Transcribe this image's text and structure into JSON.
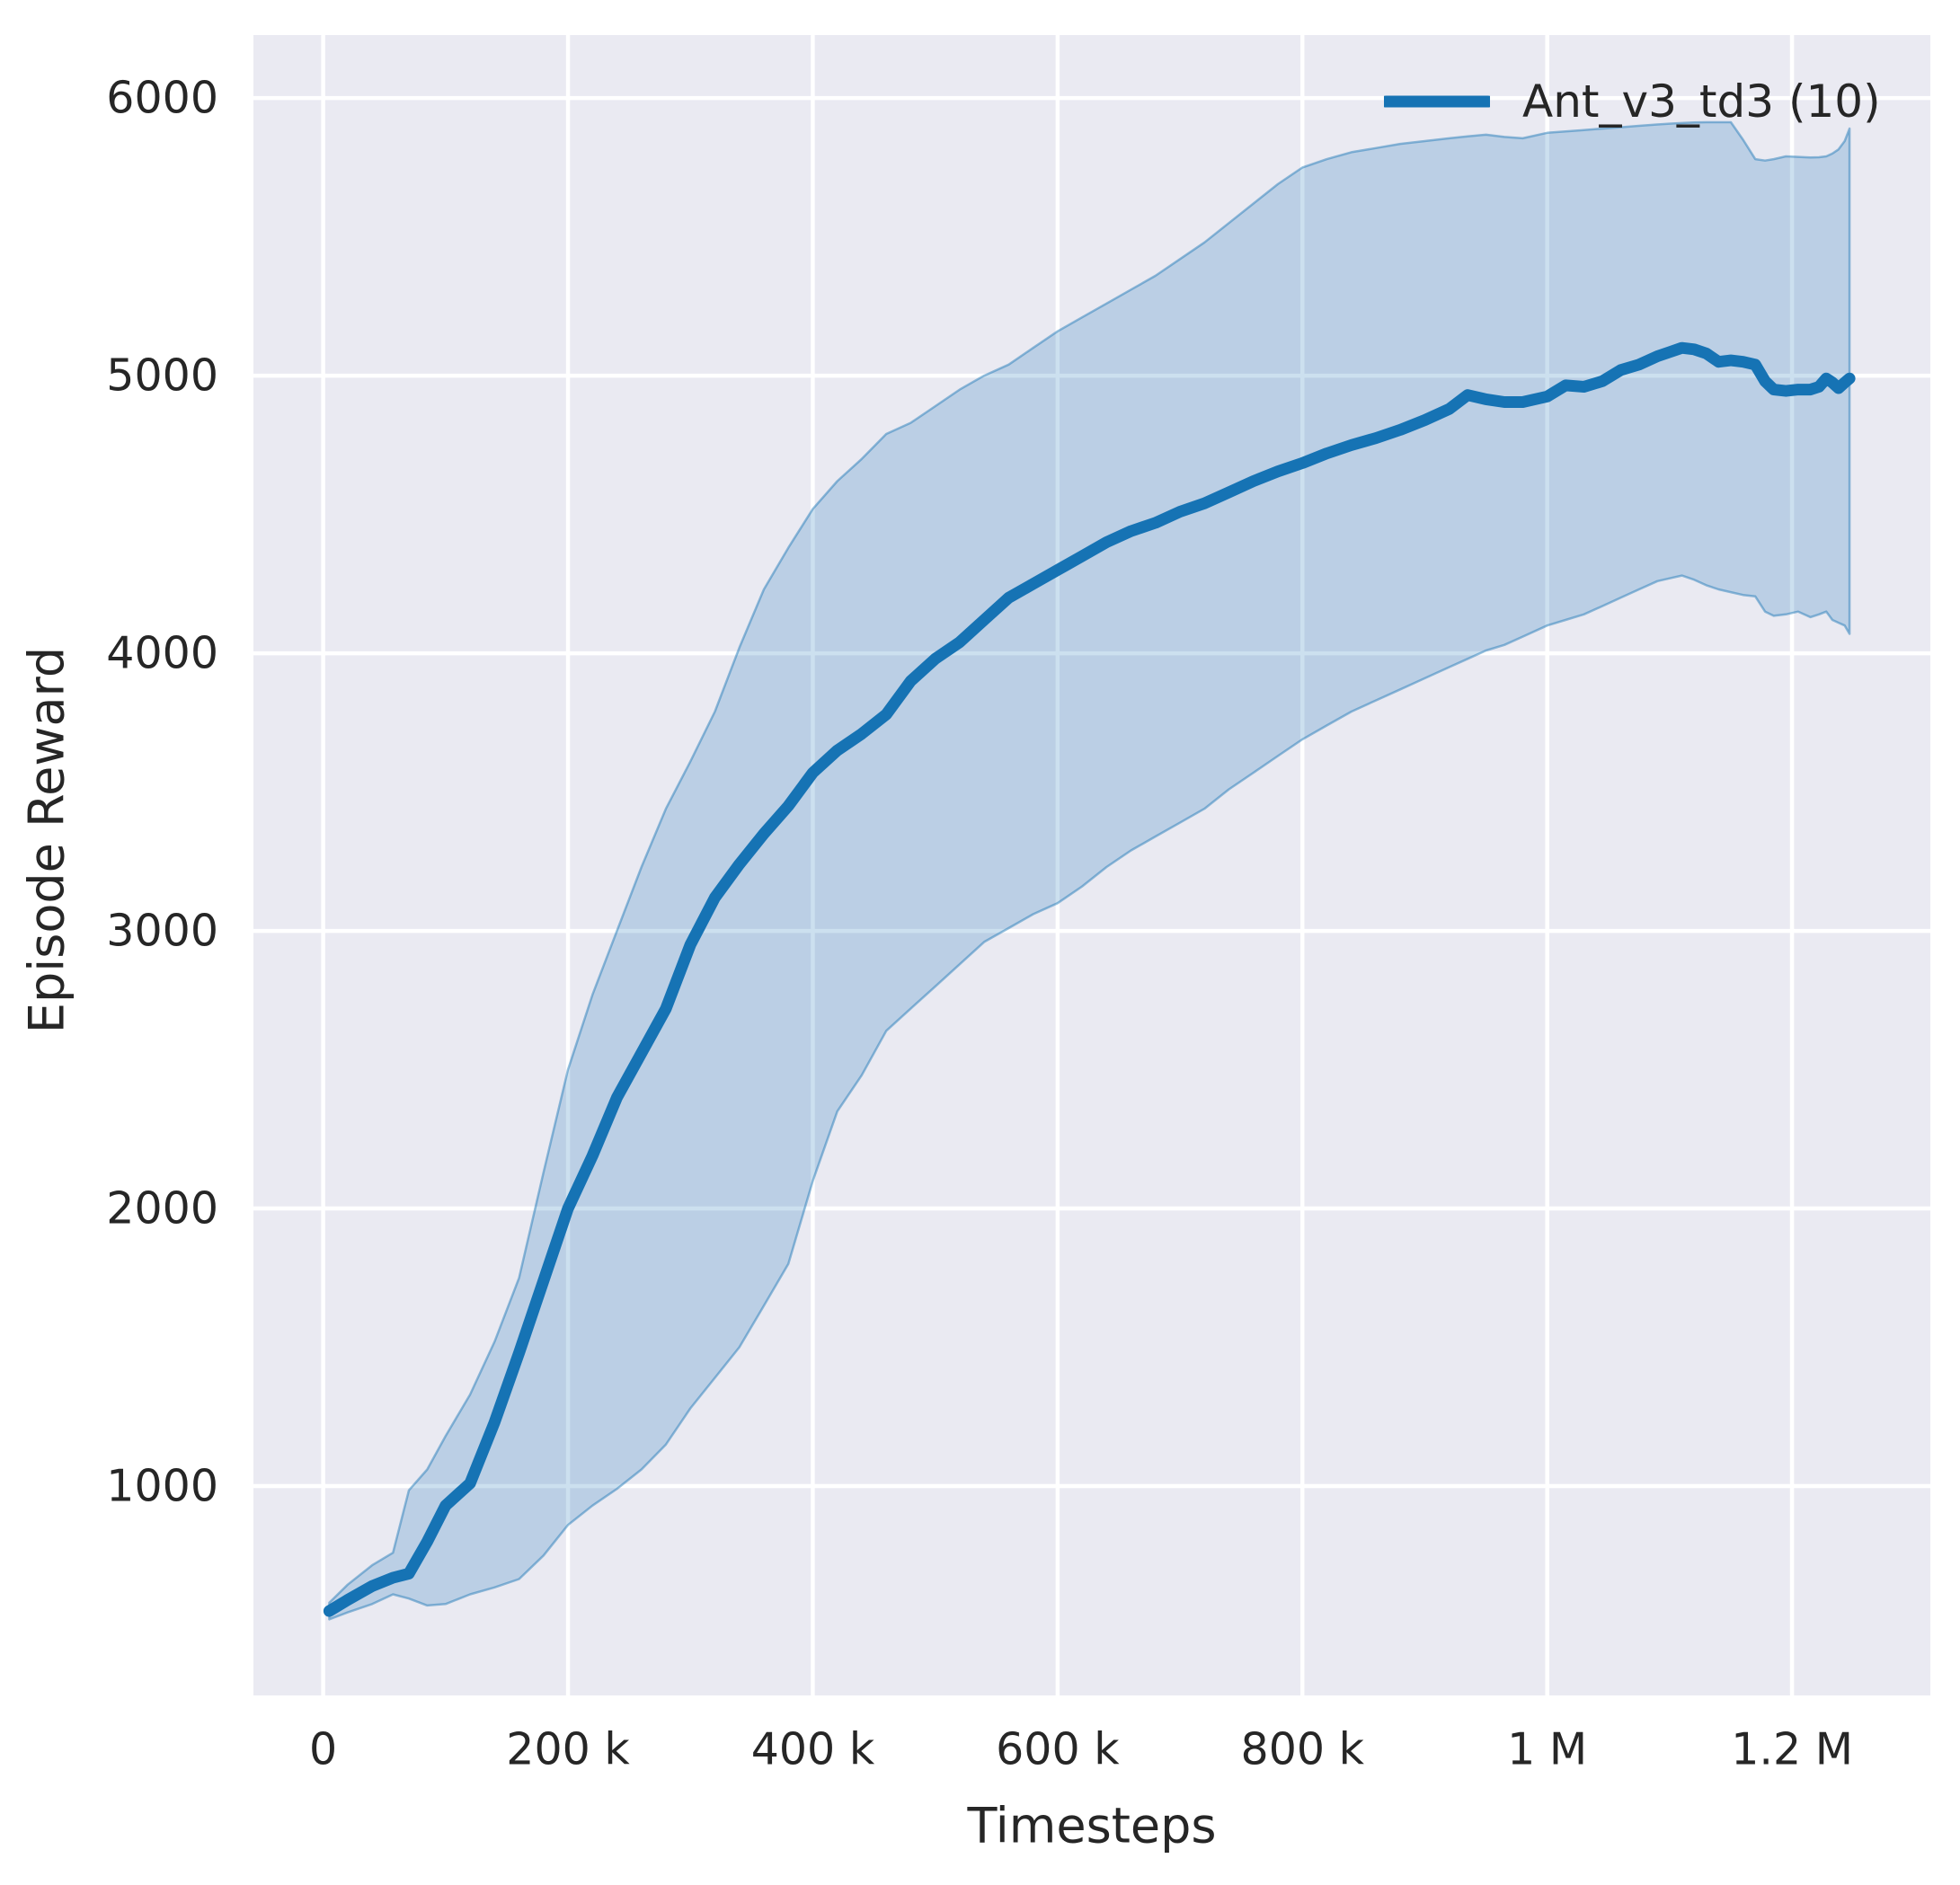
{
  "figure": {
    "xlabel": "Timesteps",
    "ylabel": "Episode Reward",
    "legend_label": "Ant_v3_td3 (10)"
  },
  "chart_data": {
    "type": "line",
    "title": "",
    "xlabel": "Timesteps",
    "ylabel": "Episode Reward",
    "legend_position": "upper right",
    "grid": true,
    "style": "seaborn-darkgrid",
    "background_color": "#eaeaf2",
    "grid_color": "#ffffff",
    "text_color": "#262626",
    "line_color": "#1673b4",
    "band_fill_opacity": 0.22,
    "xlim": [
      -57000,
      1313000
    ],
    "ylim": [
      246,
      6227
    ],
    "x_ticks": [
      {
        "t": 0,
        "label": "0"
      },
      {
        "t": 200000,
        "label": "200 k"
      },
      {
        "t": 400000,
        "label": "400 k"
      },
      {
        "t": 600000,
        "label": "600 k"
      },
      {
        "t": 800000,
        "label": "800 k"
      },
      {
        "t": 1000000,
        "label": "1 M"
      },
      {
        "t": 1200000,
        "label": "1.2 M"
      }
    ],
    "y_ticks": [
      {
        "v": 1000,
        "label": "1000"
      },
      {
        "v": 2000,
        "label": "2000"
      },
      {
        "v": 3000,
        "label": "3000"
      },
      {
        "v": 4000,
        "label": "4000"
      },
      {
        "v": 5000,
        "label": "5000"
      },
      {
        "v": 6000,
        "label": "6000"
      }
    ],
    "series": [
      {
        "name": "Ant_v3_td3 (10)",
        "color": "#1673b4",
        "x": [
          5000,
          20000,
          40000,
          57000,
          70000,
          85000,
          100000,
          120000,
          140000,
          160000,
          180000,
          200000,
          220000,
          240000,
          260000,
          280000,
          300000,
          320000,
          340000,
          360000,
          380000,
          400000,
          420000,
          440000,
          460000,
          480000,
          500000,
          520000,
          540000,
          560000,
          580000,
          600000,
          620000,
          640000,
          660000,
          680000,
          700000,
          720000,
          740000,
          760000,
          780000,
          800000,
          820000,
          840000,
          860000,
          880000,
          900000,
          920000,
          935000,
          950000,
          965000,
          980000,
          1000000,
          1015000,
          1030000,
          1045000,
          1060000,
          1075000,
          1090000,
          1100000,
          1110000,
          1120000,
          1130000,
          1140000,
          1150000,
          1160000,
          1170000,
          1178000,
          1185000,
          1195000,
          1205000,
          1215000,
          1222000,
          1228000,
          1233000,
          1238000,
          1243000,
          1247000
        ],
        "mean": [
          550,
          590,
          640,
          670,
          685,
          800,
          930,
          1010,
          1230,
          1480,
          1740,
          2000,
          2190,
          2400,
          2560,
          2720,
          2950,
          3120,
          3240,
          3350,
          3450,
          3570,
          3650,
          3710,
          3780,
          3900,
          3980,
          4040,
          4120,
          4200,
          4250,
          4300,
          4350,
          4400,
          4440,
          4470,
          4510,
          4540,
          4580,
          4620,
          4655,
          4685,
          4720,
          4750,
          4775,
          4805,
          4840,
          4880,
          4930,
          4915,
          4905,
          4905,
          4925,
          4965,
          4960,
          4980,
          5020,
          5040,
          5070,
          5085,
          5100,
          5095,
          5080,
          5050,
          5055,
          5050,
          5040,
          4980,
          4950,
          4945,
          4950,
          4950,
          4960,
          4990,
          4975,
          4955,
          4975,
          4990
        ],
        "lower": [
          520,
          545,
          575,
          610,
          595,
          570,
          575,
          610,
          635,
          665,
          750,
          860,
          930,
          990,
          1060,
          1150,
          1280,
          1390,
          1500,
          1650,
          1800,
          2100,
          2350,
          2480,
          2640,
          2720,
          2800,
          2880,
          2960,
          3010,
          3060,
          3100,
          3160,
          3230,
          3290,
          3340,
          3390,
          3440,
          3510,
          3570,
          3630,
          3690,
          3740,
          3790,
          3830,
          3870,
          3910,
          3950,
          3980,
          4010,
          4030,
          4060,
          4100,
          4120,
          4140,
          4170,
          4200,
          4230,
          4260,
          4270,
          4280,
          4265,
          4245,
          4230,
          4220,
          4210,
          4205,
          4150,
          4135,
          4140,
          4150,
          4130,
          4140,
          4150,
          4120,
          4110,
          4100,
          4070
        ],
        "upper": [
          580,
          645,
          715,
          760,
          985,
          1060,
          1180,
          1330,
          1520,
          1750,
          2130,
          2500,
          2770,
          3000,
          3230,
          3440,
          3610,
          3790,
          4020,
          4230,
          4380,
          4520,
          4620,
          4700,
          4790,
          4830,
          4890,
          4950,
          5000,
          5040,
          5100,
          5160,
          5210,
          5260,
          5310,
          5360,
          5420,
          5480,
          5550,
          5620,
          5690,
          5750,
          5780,
          5805,
          5820,
          5835,
          5845,
          5855,
          5862,
          5868,
          5860,
          5855,
          5875,
          5880,
          5885,
          5890,
          5895,
          5900,
          5905,
          5908,
          5910,
          5912,
          5913,
          5913,
          5913,
          5850,
          5780,
          5775,
          5780,
          5790,
          5788,
          5786,
          5787,
          5790,
          5800,
          5815,
          5845,
          5890
        ]
      }
    ]
  }
}
